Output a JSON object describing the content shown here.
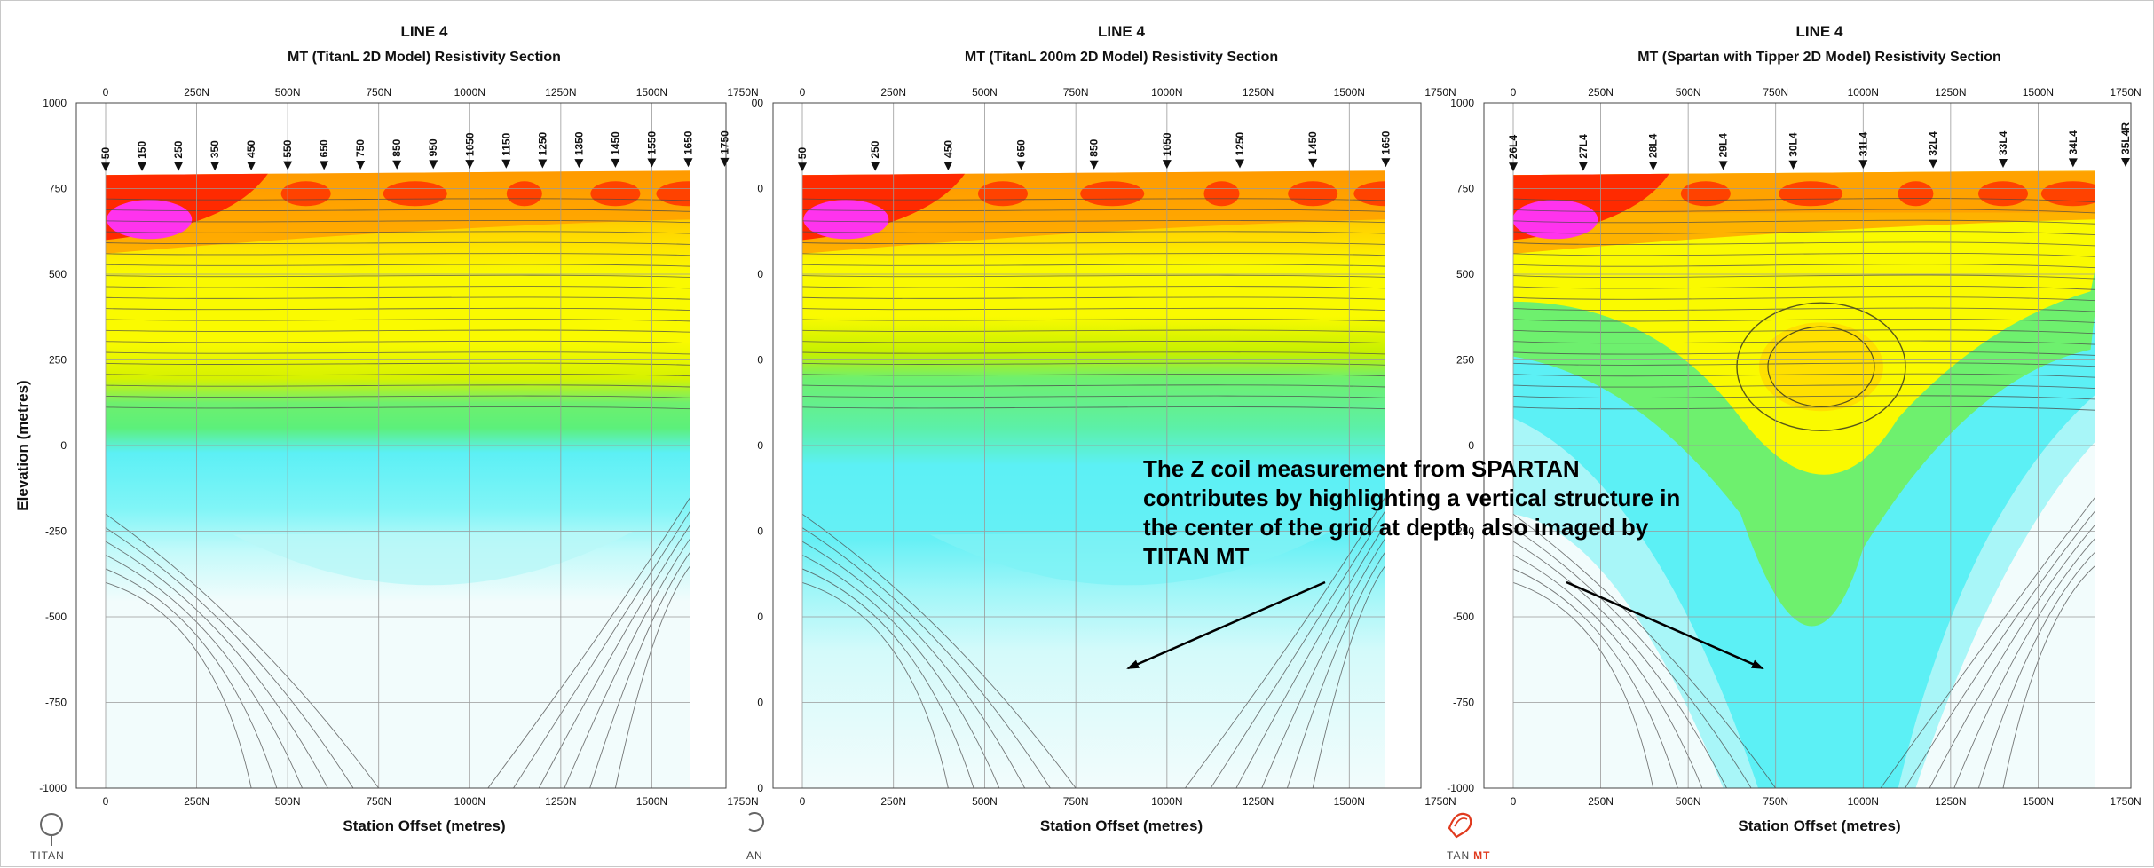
{
  "chart_data": [
    {
      "type": "heatmap",
      "line_label": "LINE 4",
      "title": "MT (TitanL 2D Model) Resistivity Section",
      "xlabel": "Station Offset (metres)",
      "ylabel": "Elevation (metres)",
      "xlim": [
        0,
        1750
      ],
      "ylim": [
        -1000,
        1000
      ],
      "x_ticks": [
        "0",
        "250N",
        "500N",
        "750N",
        "1000N",
        "1250N",
        "1500N",
        "1750N"
      ],
      "y_ticks": [
        "1000",
        "750",
        "500",
        "250",
        "0",
        "-250",
        "-500",
        "-750",
        "-1000"
      ],
      "stations": [
        "50",
        "150",
        "250",
        "350",
        "450",
        "550",
        "650",
        "750",
        "850",
        "950",
        "1050",
        "1150",
        "1250",
        "1350",
        "1450",
        "1550",
        "1650",
        "1750"
      ],
      "station_offsets": [
        0,
        100,
        200,
        300,
        400,
        500,
        600,
        700,
        800,
        900,
        1000,
        1100,
        1200,
        1300,
        1400,
        1500,
        1600,
        1700
      ],
      "colors": {
        "conductive_deep": "#f2fcfc",
        "cyan": "#5cf0f5",
        "green": "#6ef06e",
        "yellow": "#fafa00",
        "orange": "#ff9a00",
        "red": "#ff2a00",
        "magenta": "#ff33ee"
      }
    },
    {
      "type": "heatmap",
      "line_label": "LINE 4",
      "title": "MT (TitanL 200m 2D Model) Resistivity Section",
      "xlabel": "Station Offset (metres)",
      "ylabel": "",
      "xlim": [
        0,
        1750
      ],
      "ylim": [
        -1000,
        1000
      ],
      "x_ticks": [
        "0",
        "250N",
        "500N",
        "750N",
        "1000N",
        "1250N",
        "1500N",
        "1750N"
      ],
      "y_ticks": [
        "00",
        "0",
        "0",
        "0",
        "0",
        "0",
        "0",
        "0",
        "0"
      ],
      "stations": [
        "50",
        "250",
        "450",
        "650",
        "850",
        "1050",
        "1250",
        "1450",
        "1650"
      ],
      "station_offsets": [
        0,
        200,
        400,
        600,
        800,
        1000,
        1200,
        1400,
        1600
      ]
    },
    {
      "type": "heatmap",
      "line_label": "LINE 4",
      "title": "MT (Spartan with Tipper 2D Model) Resistivity Section",
      "xlabel": "Station Offset (metres)",
      "ylabel": "",
      "xlim": [
        0,
        1750
      ],
      "ylim": [
        -1000,
        1000
      ],
      "x_ticks": [
        "0",
        "250N",
        "500N",
        "750N",
        "1000N",
        "1250N",
        "1500N",
        "1750N"
      ],
      "y_ticks": [
        "1000",
        "750",
        "500",
        "250",
        "0",
        "-250",
        "-500",
        "-750",
        "-1000"
      ],
      "stations": [
        "26L4",
        "27L4",
        "28L4",
        "29L4",
        "30L4",
        "31L4",
        "32L4",
        "33L4",
        "34L4",
        "35L4R"
      ],
      "station_offsets": [
        0,
        200,
        400,
        600,
        800,
        1000,
        1200,
        1400,
        1600,
        1750
      ]
    }
  ],
  "annotation": {
    "lines": [
      "The Z coil measurement from SPARTAN",
      "contributes by highlighting a vertical structure in",
      "the center of the grid at depth, also imaged by",
      "TITAN MT"
    ]
  },
  "logos": [
    {
      "name": "titan-logo",
      "text": "TITAN"
    },
    {
      "name": "titan-logo-partial",
      "text": "AN"
    },
    {
      "name": "titan-mt-logo",
      "text": "TAN",
      "text_accent": "MT"
    }
  ]
}
